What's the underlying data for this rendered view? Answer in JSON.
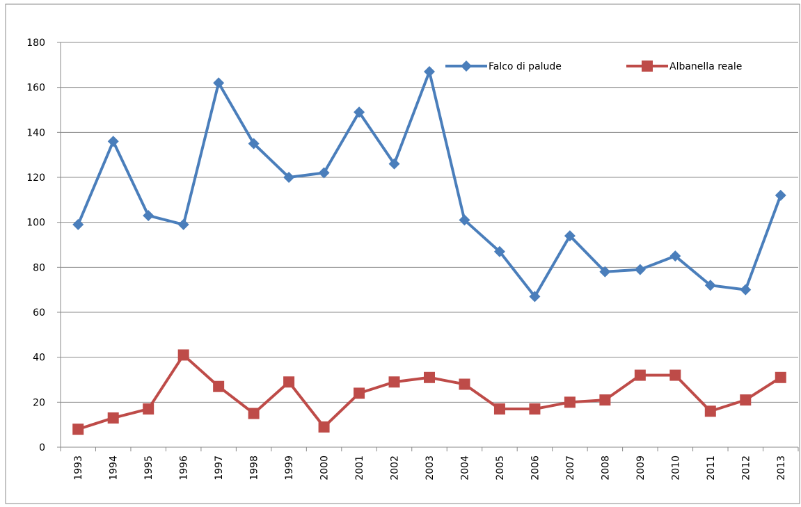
{
  "chart_data": {
    "type": "line",
    "categories": [
      "1993",
      "1994",
      "1995",
      "1996",
      "1997",
      "1998",
      "1999",
      "2000",
      "2001",
      "2002",
      "2003",
      "2004",
      "2005",
      "2006",
      "2007",
      "2008",
      "2009",
      "2010",
      "2011",
      "2012",
      "2013"
    ],
    "series": [
      {
        "name": "Falco di palude",
        "color": "#4a7ebb",
        "marker": "diamond",
        "values": [
          99,
          136,
          103,
          99,
          162,
          135,
          120,
          122,
          149,
          126,
          167,
          101,
          87,
          67,
          94,
          78,
          79,
          85,
          72,
          70,
          112
        ]
      },
      {
        "name": "Albanella reale",
        "color": "#be4b48",
        "marker": "square",
        "values": [
          8,
          13,
          17,
          41,
          27,
          15,
          29,
          9,
          24,
          29,
          31,
          28,
          17,
          17,
          20,
          21,
          32,
          32,
          16,
          21,
          31
        ]
      }
    ],
    "ylim": [
      0,
      180
    ],
    "yticks": [
      0,
      20,
      40,
      60,
      80,
      100,
      120,
      140,
      160,
      180
    ],
    "grid": true,
    "legend": "top-right"
  }
}
